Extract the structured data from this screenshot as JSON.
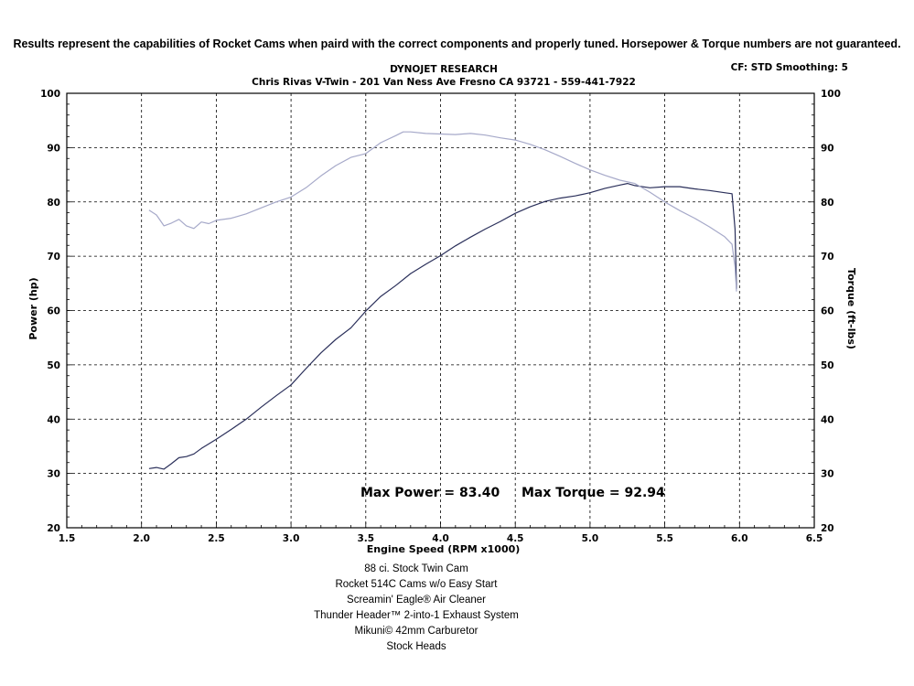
{
  "disclaimer": "Results represent the capabilities of Rocket Cams when paird with the correct components and properly tuned. Horsepower & Torque numbers are not guaranteed.",
  "header": {
    "title": "DYNOJET RESEARCH",
    "subtitle": "Chris Rivas V-Twin - 201 Van Ness Ave Fresno CA 93721 - 559-441-7922",
    "settings": "CF: STD  Smoothing: 5"
  },
  "notes": [
    "88 ci. Stock Twin Cam",
    "Rocket 514C Cams w/o Easy Start",
    "Screamin' Eagle® Air Cleaner",
    "Thunder Header™ 2-into-1 Exhaust System",
    "Mikuni© 42mm Carburetor",
    "Stock Heads"
  ],
  "chart_data": {
    "type": "line",
    "xlabel": "Engine Speed (RPM x1000)",
    "ylabel": "Power (hp)",
    "y2label": "Torque (ft-lbs)",
    "xlim": [
      1.5,
      6.5
    ],
    "ylim": [
      20,
      100
    ],
    "y2lim": [
      20,
      100
    ],
    "x_ticks": [
      "1.5",
      "2.0",
      "2.5",
      "3.0",
      "3.5",
      "4.0",
      "4.5",
      "5.0",
      "5.5",
      "6.0",
      "6.5"
    ],
    "y_ticks": [
      "20",
      "30",
      "40",
      "50",
      "60",
      "70",
      "80",
      "90",
      "100"
    ],
    "grid": true,
    "annotations": [
      "Max Power = 83.40",
      "Max Torque = 92.94"
    ],
    "series": [
      {
        "name": "Power",
        "axis": "left",
        "color": "#2a2f5a",
        "x": [
          2.05,
          2.1,
          2.15,
          2.2,
          2.25,
          2.3,
          2.35,
          2.4,
          2.5,
          2.6,
          2.7,
          2.8,
          2.9,
          3.0,
          3.1,
          3.2,
          3.3,
          3.4,
          3.5,
          3.6,
          3.7,
          3.8,
          3.9,
          4.0,
          4.1,
          4.2,
          4.3,
          4.4,
          4.5,
          4.6,
          4.7,
          4.8,
          4.9,
          5.0,
          5.1,
          5.2,
          5.25,
          5.3,
          5.4,
          5.5,
          5.6,
          5.7,
          5.8,
          5.9,
          5.95,
          5.97,
          5.98
        ],
        "values": [
          30.9,
          31.1,
          30.8,
          31.8,
          32.9,
          33.1,
          33.6,
          34.6,
          36.3,
          38.1,
          40.0,
          42.2,
          44.3,
          46.3,
          49.3,
          52.2,
          54.7,
          56.8,
          59.9,
          62.6,
          64.6,
          66.8,
          68.5,
          70.1,
          71.9,
          73.5,
          75.0,
          76.4,
          77.9,
          79.1,
          80.1,
          80.7,
          81.1,
          81.7,
          82.5,
          83.1,
          83.4,
          83.0,
          82.6,
          82.8,
          82.8,
          82.4,
          82.1,
          81.7,
          81.5,
          75.0,
          64.0
        ]
      },
      {
        "name": "Torque",
        "axis": "right",
        "color": "#a6a9c9",
        "x": [
          2.05,
          2.1,
          2.15,
          2.2,
          2.25,
          2.3,
          2.35,
          2.4,
          2.45,
          2.5,
          2.6,
          2.7,
          2.8,
          2.9,
          3.0,
          3.1,
          3.2,
          3.3,
          3.4,
          3.5,
          3.6,
          3.7,
          3.75,
          3.8,
          3.9,
          4.0,
          4.1,
          4.2,
          4.3,
          4.4,
          4.5,
          4.6,
          4.7,
          4.8,
          4.9,
          5.0,
          5.1,
          5.2,
          5.3,
          5.4,
          5.5,
          5.6,
          5.7,
          5.8,
          5.9,
          5.95,
          5.97,
          5.98
        ],
        "values": [
          78.5,
          77.6,
          75.6,
          76.1,
          76.8,
          75.6,
          75.1,
          76.3,
          76.0,
          76.6,
          77.0,
          77.8,
          78.9,
          80.0,
          80.9,
          82.6,
          84.8,
          86.7,
          88.2,
          88.9,
          90.9,
          92.2,
          92.9,
          92.9,
          92.6,
          92.5,
          92.4,
          92.6,
          92.3,
          91.8,
          91.4,
          90.6,
          89.6,
          88.4,
          87.1,
          85.9,
          84.9,
          84.0,
          83.4,
          81.8,
          80.0,
          78.4,
          77.0,
          75.4,
          73.6,
          72.2,
          68.0,
          63.5
        ]
      }
    ]
  }
}
